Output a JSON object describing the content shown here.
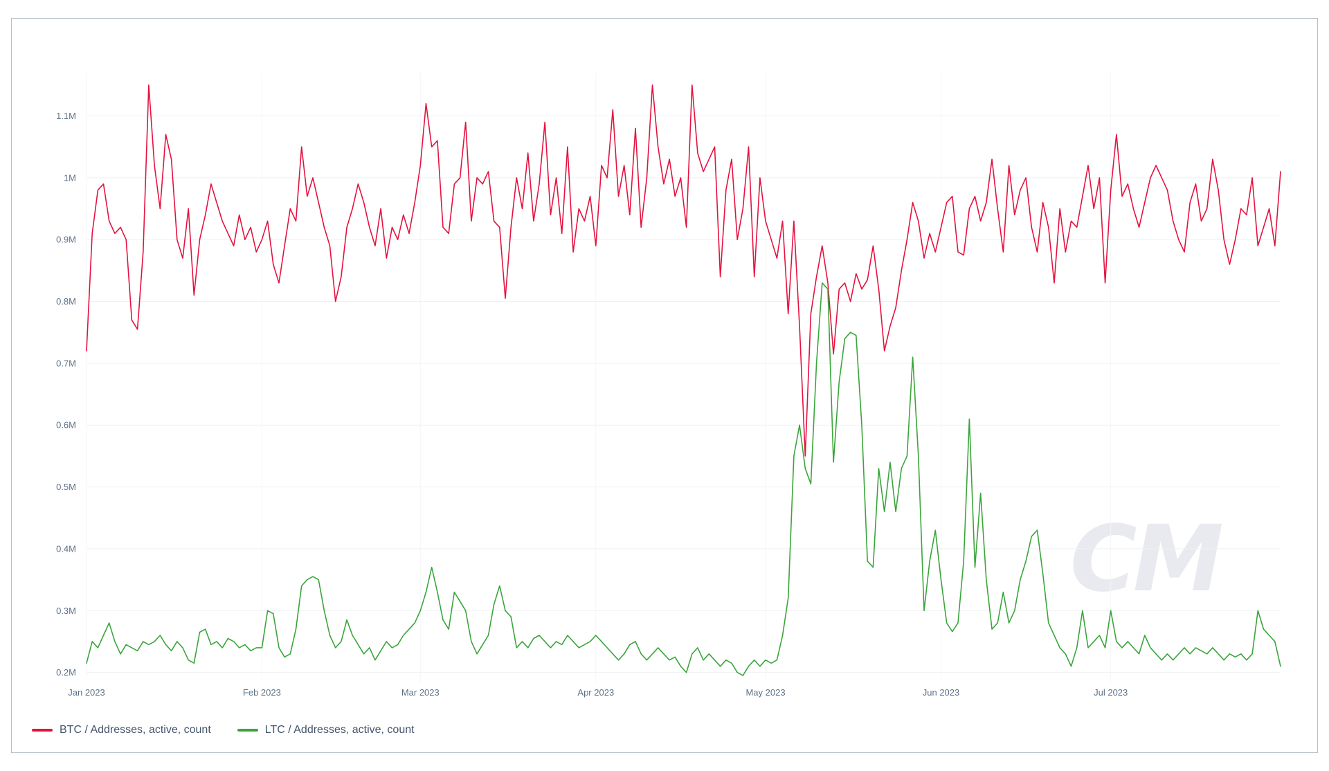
{
  "chart": {
    "watermark": "CM"
  },
  "legend": {
    "items": [
      {
        "label": "BTC / Addresses, active, count",
        "color": "#e5123f"
      },
      {
        "label": "LTC / Addresses, active, count",
        "color": "#3aa53a"
      }
    ]
  },
  "chart_data": {
    "type": "line",
    "title": "",
    "xlabel": "",
    "ylabel": "",
    "grid": true,
    "legend_position": "bottom-left",
    "values_unit": "millions of active addresses per day",
    "x_axis": {
      "unit": "day",
      "ticks": [
        {
          "index": 0,
          "label": "Jan 2023"
        },
        {
          "index": 31,
          "label": "Feb 2023"
        },
        {
          "index": 59,
          "label": "Mar 2023"
        },
        {
          "index": 90,
          "label": "Apr 2023"
        },
        {
          "index": 120,
          "label": "May 2023"
        },
        {
          "index": 151,
          "label": "Jun 2023"
        },
        {
          "index": 181,
          "label": "Jul 2023"
        }
      ]
    },
    "y_axis": {
      "range": [
        0.185,
        1.17
      ],
      "ticks": [
        {
          "value": 0.2,
          "label": "0.2M"
        },
        {
          "value": 0.3,
          "label": "0.3M"
        },
        {
          "value": 0.4,
          "label": "0.4M"
        },
        {
          "value": 0.5,
          "label": "0.5M"
        },
        {
          "value": 0.6,
          "label": "0.6M"
        },
        {
          "value": 0.7,
          "label": "0.7M"
        },
        {
          "value": 0.8,
          "label": "0.8M"
        },
        {
          "value": 0.9,
          "label": "0.9M"
        },
        {
          "value": 1.0,
          "label": "1M"
        },
        {
          "value": 1.1,
          "label": "1.1M"
        }
      ]
    },
    "series": [
      {
        "name": "BTC / Addresses, active, count",
        "color": "#e5123f",
        "values": [
          0.72,
          0.91,
          0.98,
          0.99,
          0.93,
          0.91,
          0.92,
          0.9,
          0.77,
          0.755,
          0.88,
          1.15,
          1.02,
          0.95,
          1.07,
          1.03,
          0.9,
          0.87,
          0.95,
          0.81,
          0.9,
          0.94,
          0.99,
          0.96,
          0.93,
          0.91,
          0.89,
          0.94,
          0.9,
          0.92,
          0.88,
          0.9,
          0.93,
          0.86,
          0.83,
          0.89,
          0.95,
          0.93,
          1.05,
          0.97,
          1.0,
          0.96,
          0.92,
          0.89,
          0.8,
          0.84,
          0.92,
          0.95,
          0.99,
          0.96,
          0.92,
          0.89,
          0.95,
          0.87,
          0.92,
          0.9,
          0.94,
          0.91,
          0.96,
          1.02,
          1.12,
          1.05,
          1.06,
          0.92,
          0.91,
          0.99,
          1.0,
          1.09,
          0.93,
          1.0,
          0.99,
          1.01,
          0.93,
          0.92,
          0.805,
          0.92,
          1.0,
          0.95,
          1.04,
          0.93,
          0.99,
          1.09,
          0.94,
          1.0,
          0.91,
          1.05,
          0.88,
          0.95,
          0.93,
          0.97,
          0.89,
          1.02,
          1.0,
          1.11,
          0.97,
          1.02,
          0.94,
          1.08,
          0.92,
          1.0,
          1.15,
          1.05,
          0.99,
          1.03,
          0.97,
          1.0,
          0.92,
          1.15,
          1.04,
          1.01,
          1.03,
          1.05,
          0.84,
          0.98,
          1.03,
          0.9,
          0.95,
          1.05,
          0.84,
          1.0,
          0.93,
          0.9,
          0.87,
          0.93,
          0.78,
          0.93,
          0.76,
          0.55,
          0.78,
          0.84,
          0.89,
          0.83,
          0.715,
          0.82,
          0.83,
          0.8,
          0.845,
          0.82,
          0.835,
          0.89,
          0.82,
          0.72,
          0.76,
          0.79,
          0.85,
          0.9,
          0.96,
          0.93,
          0.87,
          0.91,
          0.88,
          0.92,
          0.96,
          0.97,
          0.88,
          0.875,
          0.95,
          0.97,
          0.93,
          0.96,
          1.03,
          0.95,
          0.88,
          1.02,
          0.94,
          0.98,
          1.0,
          0.92,
          0.88,
          0.96,
          0.92,
          0.83,
          0.95,
          0.88,
          0.93,
          0.92,
          0.97,
          1.02,
          0.95,
          1.0,
          0.83,
          0.98,
          1.07,
          0.97,
          0.99,
          0.95,
          0.92,
          0.96,
          1.0,
          1.02,
          1.0,
          0.98,
          0.93,
          0.9,
          0.88,
          0.96,
          0.99,
          0.93,
          0.95,
          1.03,
          0.98,
          0.9,
          0.86,
          0.9,
          0.95,
          0.94,
          1.0,
          0.89,
          0.92,
          0.95,
          0.89,
          1.01
        ]
      },
      {
        "name": "LTC / Addresses, active, count",
        "color": "#3aa53a",
        "values": [
          0.215,
          0.25,
          0.24,
          0.26,
          0.28,
          0.25,
          0.23,
          0.245,
          0.24,
          0.235,
          0.25,
          0.245,
          0.25,
          0.26,
          0.245,
          0.235,
          0.25,
          0.24,
          0.22,
          0.215,
          0.265,
          0.27,
          0.245,
          0.25,
          0.24,
          0.255,
          0.25,
          0.24,
          0.245,
          0.235,
          0.24,
          0.24,
          0.3,
          0.295,
          0.24,
          0.225,
          0.23,
          0.27,
          0.34,
          0.35,
          0.355,
          0.35,
          0.3,
          0.26,
          0.24,
          0.25,
          0.285,
          0.26,
          0.245,
          0.23,
          0.24,
          0.22,
          0.235,
          0.25,
          0.24,
          0.245,
          0.26,
          0.27,
          0.28,
          0.3,
          0.33,
          0.37,
          0.33,
          0.285,
          0.27,
          0.33,
          0.315,
          0.3,
          0.25,
          0.23,
          0.245,
          0.26,
          0.31,
          0.34,
          0.3,
          0.29,
          0.24,
          0.25,
          0.24,
          0.255,
          0.26,
          0.25,
          0.24,
          0.25,
          0.245,
          0.26,
          0.25,
          0.24,
          0.245,
          0.25,
          0.26,
          0.25,
          0.24,
          0.23,
          0.22,
          0.23,
          0.245,
          0.25,
          0.23,
          0.22,
          0.23,
          0.24,
          0.23,
          0.22,
          0.225,
          0.21,
          0.2,
          0.23,
          0.24,
          0.22,
          0.23,
          0.22,
          0.21,
          0.22,
          0.215,
          0.2,
          0.195,
          0.21,
          0.22,
          0.21,
          0.22,
          0.215,
          0.22,
          0.26,
          0.32,
          0.55,
          0.6,
          0.53,
          0.505,
          0.7,
          0.83,
          0.82,
          0.54,
          0.67,
          0.74,
          0.75,
          0.745,
          0.6,
          0.38,
          0.37,
          0.53,
          0.46,
          0.54,
          0.46,
          0.53,
          0.55,
          0.71,
          0.55,
          0.3,
          0.38,
          0.43,
          0.35,
          0.28,
          0.266,
          0.28,
          0.38,
          0.61,
          0.37,
          0.49,
          0.35,
          0.27,
          0.28,
          0.33,
          0.28,
          0.3,
          0.35,
          0.38,
          0.42,
          0.43,
          0.36,
          0.28,
          0.26,
          0.24,
          0.23,
          0.21,
          0.24,
          0.3,
          0.24,
          0.25,
          0.26,
          0.24,
          0.3,
          0.25,
          0.24,
          0.25,
          0.24,
          0.23,
          0.26,
          0.24,
          0.23,
          0.22,
          0.23,
          0.22,
          0.23,
          0.24,
          0.23,
          0.24,
          0.235,
          0.23,
          0.24,
          0.23,
          0.22,
          0.23,
          0.225,
          0.23,
          0.22,
          0.23,
          0.3,
          0.27,
          0.26,
          0.25,
          0.21
        ]
      }
    ]
  }
}
